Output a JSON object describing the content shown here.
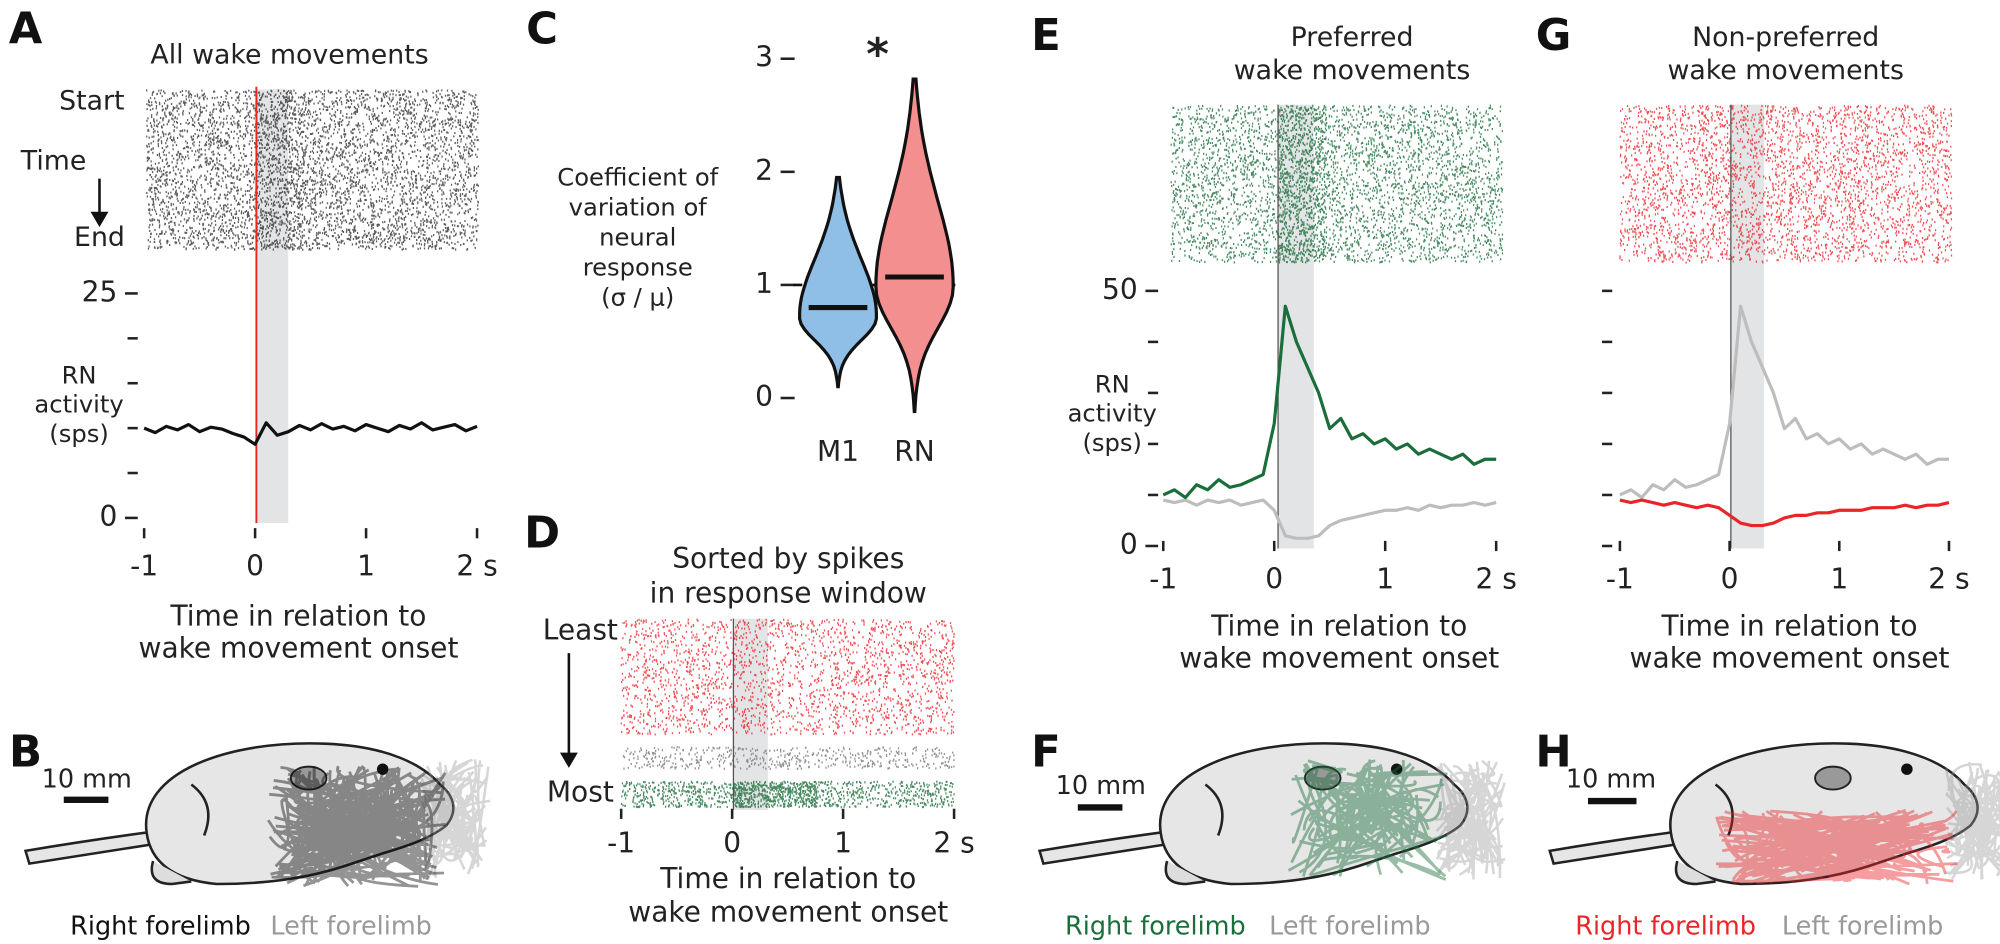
{
  "trace_x": [
    -1,
    -0.9,
    -0.8,
    -0.7,
    -0.6,
    -0.5,
    -0.4,
    -0.3,
    -0.2,
    -0.1,
    0,
    0.1,
    0.2,
    0.3,
    0.4,
    0.5,
    0.6,
    0.7,
    0.8,
    0.9,
    1,
    1.1,
    1.2,
    1.3,
    1.4,
    1.5,
    1.6,
    1.7,
    1.8,
    1.9,
    2
  ],
  "panels": {
    "A": {
      "letter": "A",
      "title": "All wake movements",
      "raster_labels": [
        "Start",
        "Time",
        "End"
      ],
      "ylabel": [
        "RN",
        "activity",
        "(sps)"
      ],
      "xlim": [
        -1,
        2
      ],
      "ylim": [
        0,
        25
      ],
      "xticks": [
        -1,
        0,
        1,
        {
          "value": 2,
          "label": "2 s"
        }
      ],
      "yticks": [
        0,
        25
      ],
      "minor_yticks": [
        5,
        10,
        15,
        20
      ],
      "xlabel": [
        "Time in relation to",
        "wake movement onset"
      ],
      "traces": [
        {
          "color": "#111111",
          "values": [
            10,
            9.5,
            10.2,
            9.8,
            10.4,
            9.6,
            10.1,
            9.9,
            9.4,
            9,
            8.2,
            10.6,
            9.2,
            9.6,
            10.3,
            9.8,
            10.5,
            9.9,
            10.2,
            9.7,
            10.4,
            10,
            9.6,
            10.3,
            9.9,
            10.6,
            9.8,
            10.1,
            10.4,
            9.7,
            10.2
          ]
        }
      ]
    },
    "B": {
      "letter": "B",
      "scale": "10 mm",
      "legend": [
        {
          "name": "Right forelimb",
          "color": "#111111"
        },
        {
          "name": "Left forelimb",
          "color": "#999999"
        }
      ]
    },
    "C": {
      "letter": "C",
      "ylabel": [
        "Coefficient of",
        "variation of",
        "neural",
        "response",
        "(σ / μ)"
      ],
      "ylim": [
        0,
        3
      ],
      "yticks": [
        0,
        1,
        2,
        3
      ],
      "reference": 1,
      "significance": "*",
      "violins": [
        {
          "label": "M1",
          "color": "#8fbfe6",
          "median": 0.8,
          "min": 0.1,
          "max": 1.95
        },
        {
          "label": "RN",
          "color": "#f38f8f",
          "median": 1.07,
          "min": -0.12,
          "max": 2.82
        }
      ]
    },
    "D": {
      "letter": "D",
      "title": [
        "Sorted by spikes",
        "in response window"
      ],
      "raster_labels": [
        "Least",
        "Most"
      ],
      "xlim": [
        -1,
        2
      ],
      "xticks": [
        -1,
        0,
        1,
        {
          "value": 2,
          "label": "2 s"
        }
      ],
      "xlabel": [
        "Time in relation to",
        "wake movement onset"
      ]
    },
    "E": {
      "letter": "E",
      "title": [
        "Preferred",
        "wake movements"
      ],
      "ylabel": [
        "RN",
        "activity",
        "(sps)"
      ],
      "xlim": [
        -1,
        2
      ],
      "ylim": [
        0,
        50
      ],
      "xticks": [
        -1,
        0,
        1,
        {
          "value": 2,
          "label": "2 s"
        }
      ],
      "yticks": [
        0,
        50
      ],
      "minor_yticks": [
        10,
        20,
        30,
        40
      ],
      "xlabel": [
        "Time in relation to",
        "wake movement onset"
      ],
      "traces": [
        {
          "color": "#bdbdbd",
          "values": [
            9,
            8.5,
            9,
            8,
            9,
            8.5,
            9,
            8,
            8.5,
            9,
            7,
            2,
            1.5,
            1.5,
            2,
            4,
            5,
            5.5,
            6,
            6.5,
            7,
            7,
            7.5,
            7,
            8,
            7.5,
            8,
            8,
            8.5,
            8,
            8.5
          ]
        },
        {
          "color": "#1b6e3b",
          "values": [
            10,
            11,
            9.5,
            12,
            11,
            13,
            11.5,
            12,
            13,
            14,
            24,
            47,
            40,
            35,
            30,
            23,
            25,
            21,
            22,
            20,
            21,
            19,
            20,
            18,
            19,
            18,
            17,
            18,
            16,
            17,
            17
          ]
        }
      ]
    },
    "F": {
      "letter": "F",
      "scale": "10 mm",
      "legend": [
        {
          "name": "Right forelimb",
          "color": "#1b6e3b"
        },
        {
          "name": "Left forelimb",
          "color": "#999999"
        }
      ]
    },
    "G": {
      "letter": "G",
      "title": [
        "Non-preferred",
        "wake movements"
      ],
      "xlim": [
        -1,
        2
      ],
      "ylim": [
        0,
        50
      ],
      "xticks": [
        -1,
        0,
        1,
        {
          "value": 2,
          "label": "2 s"
        }
      ],
      "minor_yticks": [
        0,
        10,
        20,
        30,
        40,
        50
      ],
      "xlabel": [
        "Time in relation to",
        "wake movement onset"
      ],
      "traces": [
        {
          "color": "#bdbdbd",
          "values": [
            10,
            11,
            9.5,
            12,
            11,
            13,
            11.5,
            12,
            13,
            14,
            24,
            47,
            40,
            35,
            30,
            23,
            25,
            21,
            22,
            20,
            21,
            19,
            20,
            18,
            19,
            18,
            17,
            18,
            16,
            17,
            17
          ]
        },
        {
          "color": "#e8262a",
          "values": [
            9,
            8.5,
            9,
            8.5,
            8,
            8.5,
            8,
            7.5,
            8,
            7.5,
            6,
            4.5,
            4,
            4,
            4.5,
            5.5,
            6,
            6,
            6.5,
            6.5,
            7,
            7,
            7,
            7.5,
            7.5,
            7.5,
            8,
            7.5,
            8,
            8,
            8.5
          ]
        }
      ]
    },
    "H": {
      "letter": "H",
      "scale": "10 mm",
      "legend": [
        {
          "name": "Right forelimb",
          "color": "#e8262a"
        },
        {
          "name": "Left forelimb",
          "color": "#999999"
        }
      ]
    }
  }
}
